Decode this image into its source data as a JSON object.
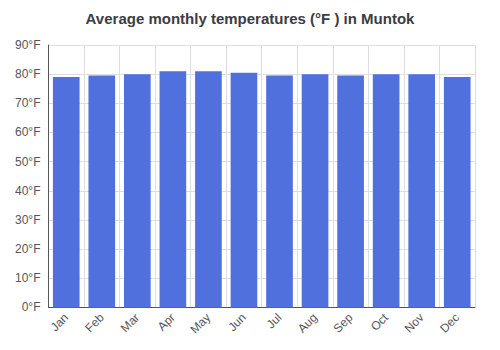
{
  "chart_data": {
    "type": "bar",
    "title": "Average monthly temperatures (°F ) in Muntok",
    "categories": [
      "Jan",
      "Feb",
      "Mar",
      "Apr",
      "May",
      "Jun",
      "Jul",
      "Aug",
      "Sep",
      "Oct",
      "Nov",
      "Dec"
    ],
    "values": [
      79,
      79.5,
      80,
      81,
      81,
      80.5,
      79.5,
      80,
      79.5,
      80,
      80,
      79
    ],
    "ylim": [
      0,
      90
    ],
    "yticks": [
      {
        "value": 0,
        "label": "0°F"
      },
      {
        "value": 10,
        "label": "10°F"
      },
      {
        "value": 20,
        "label": "20°F"
      },
      {
        "value": 30,
        "label": "30°F"
      },
      {
        "value": 40,
        "label": "40°F"
      },
      {
        "value": 50,
        "label": "50°F"
      },
      {
        "value": 60,
        "label": "60°F"
      },
      {
        "value": 70,
        "label": "70°F"
      },
      {
        "value": 80,
        "label": "80°F"
      },
      {
        "value": 90,
        "label": "90°F"
      }
    ],
    "grid": true
  }
}
